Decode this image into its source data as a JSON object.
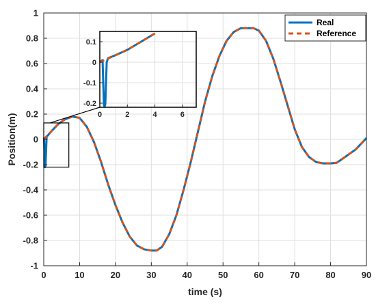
{
  "chart_data": [
    {
      "type": "line",
      "xlabel": "time (s)",
      "ylabel": "Position(m)",
      "xlim": [
        0,
        90
      ],
      "ylim": [
        -1,
        1
      ],
      "xticks": [
        0,
        10,
        20,
        30,
        40,
        50,
        60,
        70,
        80,
        90
      ],
      "yticks": [
        -1,
        -0.8,
        -0.6,
        -0.4,
        -0.2,
        0,
        0.2,
        0.4,
        0.6,
        0.8,
        1
      ],
      "grid": true,
      "legend": "top-right",
      "series": [
        {
          "name": "Real",
          "color": "#0072BD",
          "style": "solid",
          "x": [
            0,
            0.1,
            0.3,
            0.5,
            0.8,
            2,
            4,
            6,
            8,
            10,
            12,
            14,
            16,
            18,
            20,
            22,
            24,
            26,
            28,
            30,
            31.5,
            33,
            35,
            37,
            39,
            41,
            43,
            45,
            47,
            49,
            51,
            53,
            55,
            57,
            58.5,
            60,
            62,
            64,
            66,
            68,
            70,
            72,
            74,
            76,
            78,
            80,
            81.7,
            83,
            85,
            87,
            89,
            90
          ],
          "y": [
            0,
            0.01,
            -0.22,
            -0.21,
            0.02,
            0.06,
            0.12,
            0.16,
            0.18,
            0.17,
            0.1,
            -0.02,
            -0.18,
            -0.36,
            -0.52,
            -0.66,
            -0.77,
            -0.84,
            -0.87,
            -0.88,
            -0.88,
            -0.85,
            -0.75,
            -0.6,
            -0.4,
            -0.18,
            0.06,
            0.3,
            0.5,
            0.66,
            0.78,
            0.85,
            0.88,
            0.88,
            0.88,
            0.86,
            0.78,
            0.64,
            0.46,
            0.27,
            0.08,
            -0.06,
            -0.14,
            -0.18,
            -0.19,
            -0.19,
            -0.185,
            -0.16,
            -0.12,
            -0.08,
            -0.02,
            0.01
          ]
        },
        {
          "name": "Reference",
          "color": "#D95319",
          "style": "dashed",
          "x": [
            0,
            2,
            4,
            6,
            8,
            10,
            12,
            14,
            16,
            18,
            20,
            22,
            24,
            26,
            28,
            30,
            31.5,
            33,
            35,
            37,
            39,
            41,
            43,
            45,
            47,
            49,
            51,
            53,
            55,
            57,
            58.5,
            60,
            62,
            64,
            66,
            68,
            70,
            72,
            74,
            76,
            78,
            80,
            81.7,
            83,
            85,
            87,
            89,
            90
          ],
          "y": [
            0,
            0.06,
            0.12,
            0.16,
            0.18,
            0.17,
            0.1,
            -0.02,
            -0.18,
            -0.36,
            -0.52,
            -0.66,
            -0.77,
            -0.84,
            -0.87,
            -0.88,
            -0.88,
            -0.85,
            -0.75,
            -0.6,
            -0.4,
            -0.18,
            0.06,
            0.3,
            0.5,
            0.66,
            0.78,
            0.85,
            0.88,
            0.88,
            0.88,
            0.86,
            0.78,
            0.64,
            0.46,
            0.27,
            0.08,
            -0.06,
            -0.14,
            -0.18,
            -0.19,
            -0.19,
            -0.185,
            -0.16,
            -0.12,
            -0.08,
            -0.02,
            0.01
          ]
        }
      ],
      "zoom_box": {
        "x": [
          0,
          7
        ],
        "y": [
          -0.22,
          0.13
        ]
      }
    },
    {
      "type": "line",
      "inset": true,
      "xlim": [
        0,
        7
      ],
      "ylim": [
        -0.22,
        0.15
      ],
      "xticks": [
        0,
        2,
        4,
        6
      ],
      "yticks": [
        -0.2,
        -0.1,
        0,
        0.1
      ],
      "grid": true,
      "series": [
        {
          "name": "Real",
          "color": "#0072BD",
          "style": "solid",
          "x": [
            0,
            0.1,
            0.2,
            0.3,
            0.35,
            0.4,
            0.5,
            0.6,
            1,
            2,
            3,
            4
          ],
          "y": [
            0,
            0.005,
            0.01,
            -0.21,
            -0.215,
            -0.205,
            0.0,
            0.02,
            0.03,
            0.06,
            0.1,
            0.14
          ]
        },
        {
          "name": "Reference",
          "color": "#D95319",
          "style": "dashed",
          "x": [
            0,
            1,
            2,
            3,
            4
          ],
          "y": [
            0,
            0.03,
            0.06,
            0.1,
            0.14
          ]
        }
      ]
    }
  ]
}
